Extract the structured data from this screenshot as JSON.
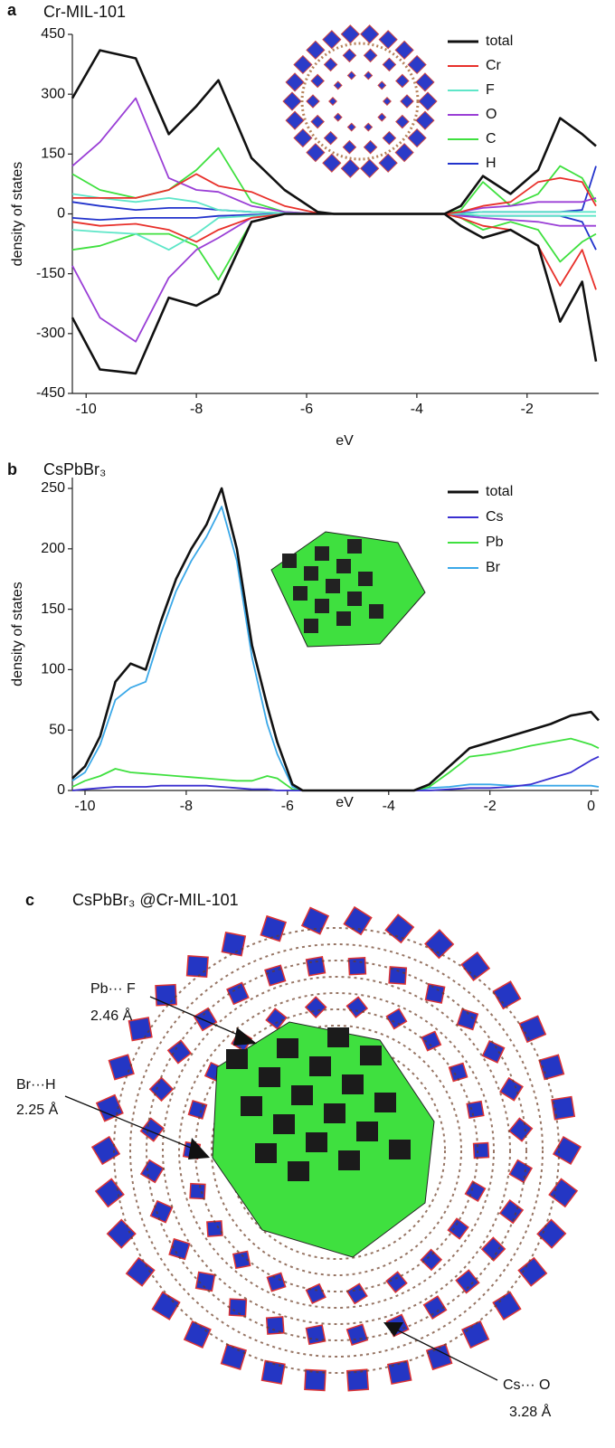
{
  "chart_data": [
    {
      "type": "line",
      "panel_label": "a",
      "title": "Cr-MIL-101",
      "x_label": "eV",
      "y_label": "density of states",
      "x": [
        -10.25,
        -9.75,
        -9.1,
        -8.5,
        -8,
        -7.6,
        -7,
        -6.4,
        -5.8,
        -5.5,
        -3.5,
        -3.2,
        -2.8,
        -2.3,
        -1.8,
        -1.4,
        -1,
        -0.75
      ],
      "xlim": [
        -10.25,
        -0.7
      ],
      "xticks": [
        -10,
        -8,
        -6,
        -4,
        -2
      ],
      "ylim": [
        -450,
        450
      ],
      "yticks": [
        450,
        300,
        150,
        0,
        -150,
        -300,
        -450
      ],
      "legend": "upper right",
      "series": [
        {
          "name": "total",
          "color": "#111111",
          "values": [
            290,
            410,
            390,
            200,
            270,
            335,
            140,
            60,
            5,
            0,
            0,
            20,
            95,
            50,
            110,
            240,
            200,
            170
          ],
          "values_down": [
            -260,
            -390,
            -400,
            -210,
            -230,
            -200,
            -20,
            0,
            0,
            0,
            0,
            -30,
            -60,
            -40,
            -80,
            -270,
            -170,
            -370
          ]
        },
        {
          "name": "Cr",
          "color": "#e8302a",
          "values": [
            40,
            40,
            40,
            60,
            100,
            70,
            55,
            20,
            2,
            0,
            0,
            5,
            20,
            30,
            80,
            90,
            80,
            20
          ],
          "values_down": [
            -20,
            -30,
            -25,
            -40,
            -70,
            -40,
            -10,
            0,
            0,
            0,
            0,
            -10,
            -30,
            -40,
            -80,
            -180,
            -90,
            -190
          ]
        },
        {
          "name": "F",
          "color": "#5ee6c8",
          "values": [
            50,
            40,
            30,
            40,
            30,
            10,
            5,
            2,
            0,
            0,
            0,
            0,
            5,
            5,
            5,
            5,
            5,
            5
          ],
          "values_down": [
            -40,
            -45,
            -50,
            -90,
            -50,
            -10,
            -5,
            0,
            0,
            0,
            0,
            0,
            -5,
            -5,
            -5,
            -5,
            -5,
            -5
          ]
        },
        {
          "name": "O",
          "color": "#9a3fd6",
          "values": [
            120,
            180,
            290,
            90,
            60,
            55,
            20,
            5,
            0,
            0,
            0,
            5,
            15,
            20,
            30,
            30,
            30,
            40
          ],
          "values_down": [
            -130,
            -260,
            -320,
            -160,
            -90,
            -60,
            -10,
            0,
            0,
            0,
            0,
            -5,
            -10,
            -15,
            -20,
            -30,
            -30,
            -30
          ]
        },
        {
          "name": "C",
          "color": "#3fe03f",
          "values": [
            100,
            60,
            40,
            60,
            110,
            165,
            30,
            5,
            0,
            0,
            0,
            10,
            80,
            20,
            50,
            120,
            90,
            30
          ],
          "values_down": [
            -90,
            -80,
            -50,
            -50,
            -80,
            -165,
            -20,
            0,
            0,
            0,
            0,
            -10,
            -40,
            -20,
            -40,
            -120,
            -70,
            -50
          ]
        },
        {
          "name": "H",
          "color": "#2233cc",
          "values": [
            30,
            20,
            10,
            15,
            15,
            10,
            5,
            2,
            0,
            0,
            0,
            2,
            5,
            5,
            5,
            5,
            10,
            120
          ],
          "values_down": [
            -10,
            -15,
            -10,
            -10,
            -10,
            -5,
            -2,
            0,
            0,
            0,
            0,
            -2,
            -5,
            -5,
            -5,
            -5,
            -20,
            -90
          ]
        }
      ]
    },
    {
      "type": "line",
      "panel_label": "b",
      "title": "CsPbBr₃",
      "x_label": "eV",
      "y_label": "density of states",
      "x": [
        -10.25,
        -10,
        -9.7,
        -9.4,
        -9.1,
        -8.8,
        -8.5,
        -8.2,
        -7.9,
        -7.6,
        -7.3,
        -7,
        -6.7,
        -6.4,
        -6.2,
        -5.9,
        -5.7,
        -3.5,
        -3.2,
        -2.8,
        -2.4,
        -2,
        -1.6,
        -1.2,
        -0.8,
        -0.4,
        0,
        0.15
      ],
      "xlim": [
        -10.25,
        0.15
      ],
      "xticks": [
        -10,
        -8,
        -6,
        -4,
        -2,
        0
      ],
      "ylim": [
        0,
        259
      ],
      "yticks": [
        0,
        50,
        100,
        150,
        200,
        250
      ],
      "legend": "upper right",
      "series": [
        {
          "name": "total",
          "color": "#111111",
          "values": [
            10,
            20,
            45,
            90,
            105,
            100,
            140,
            175,
            200,
            220,
            250,
            200,
            120,
            70,
            40,
            5,
            0,
            0,
            5,
            20,
            35,
            40,
            45,
            50,
            55,
            62,
            65,
            58
          ]
        },
        {
          "name": "Cs",
          "color": "#3a2fd0",
          "values": [
            0,
            1,
            2,
            3,
            3,
            3,
            4,
            4,
            4,
            4,
            3,
            2,
            1,
            1,
            0,
            0,
            0,
            0,
            0,
            1,
            2,
            2,
            3,
            5,
            10,
            15,
            25,
            28
          ]
        },
        {
          "name": "Pb",
          "color": "#3fe03f",
          "values": [
            3,
            8,
            12,
            18,
            15,
            14,
            13,
            12,
            11,
            10,
            9,
            8,
            8,
            12,
            10,
            1,
            0,
            0,
            3,
            15,
            28,
            30,
            33,
            37,
            40,
            43,
            38,
            35
          ]
        },
        {
          "name": "Br",
          "color": "#3aa8e8",
          "values": [
            8,
            15,
            38,
            75,
            85,
            90,
            130,
            165,
            190,
            210,
            235,
            190,
            110,
            55,
            30,
            3,
            0,
            0,
            2,
            3,
            5,
            5,
            4,
            4,
            4,
            4,
            4,
            3
          ]
        }
      ]
    }
  ],
  "panel_c": {
    "panel_label": "c",
    "title": "CsPbBr₃ @Cr-MIL-101",
    "annotations": [
      {
        "lines": [
          "Pb··· F",
          "2.46 Å"
        ]
      },
      {
        "lines": [
          "Br···H",
          "2.25 Å"
        ]
      },
      {
        "lines": [
          "Cs··· O",
          "3.28 Å"
        ]
      }
    ]
  }
}
